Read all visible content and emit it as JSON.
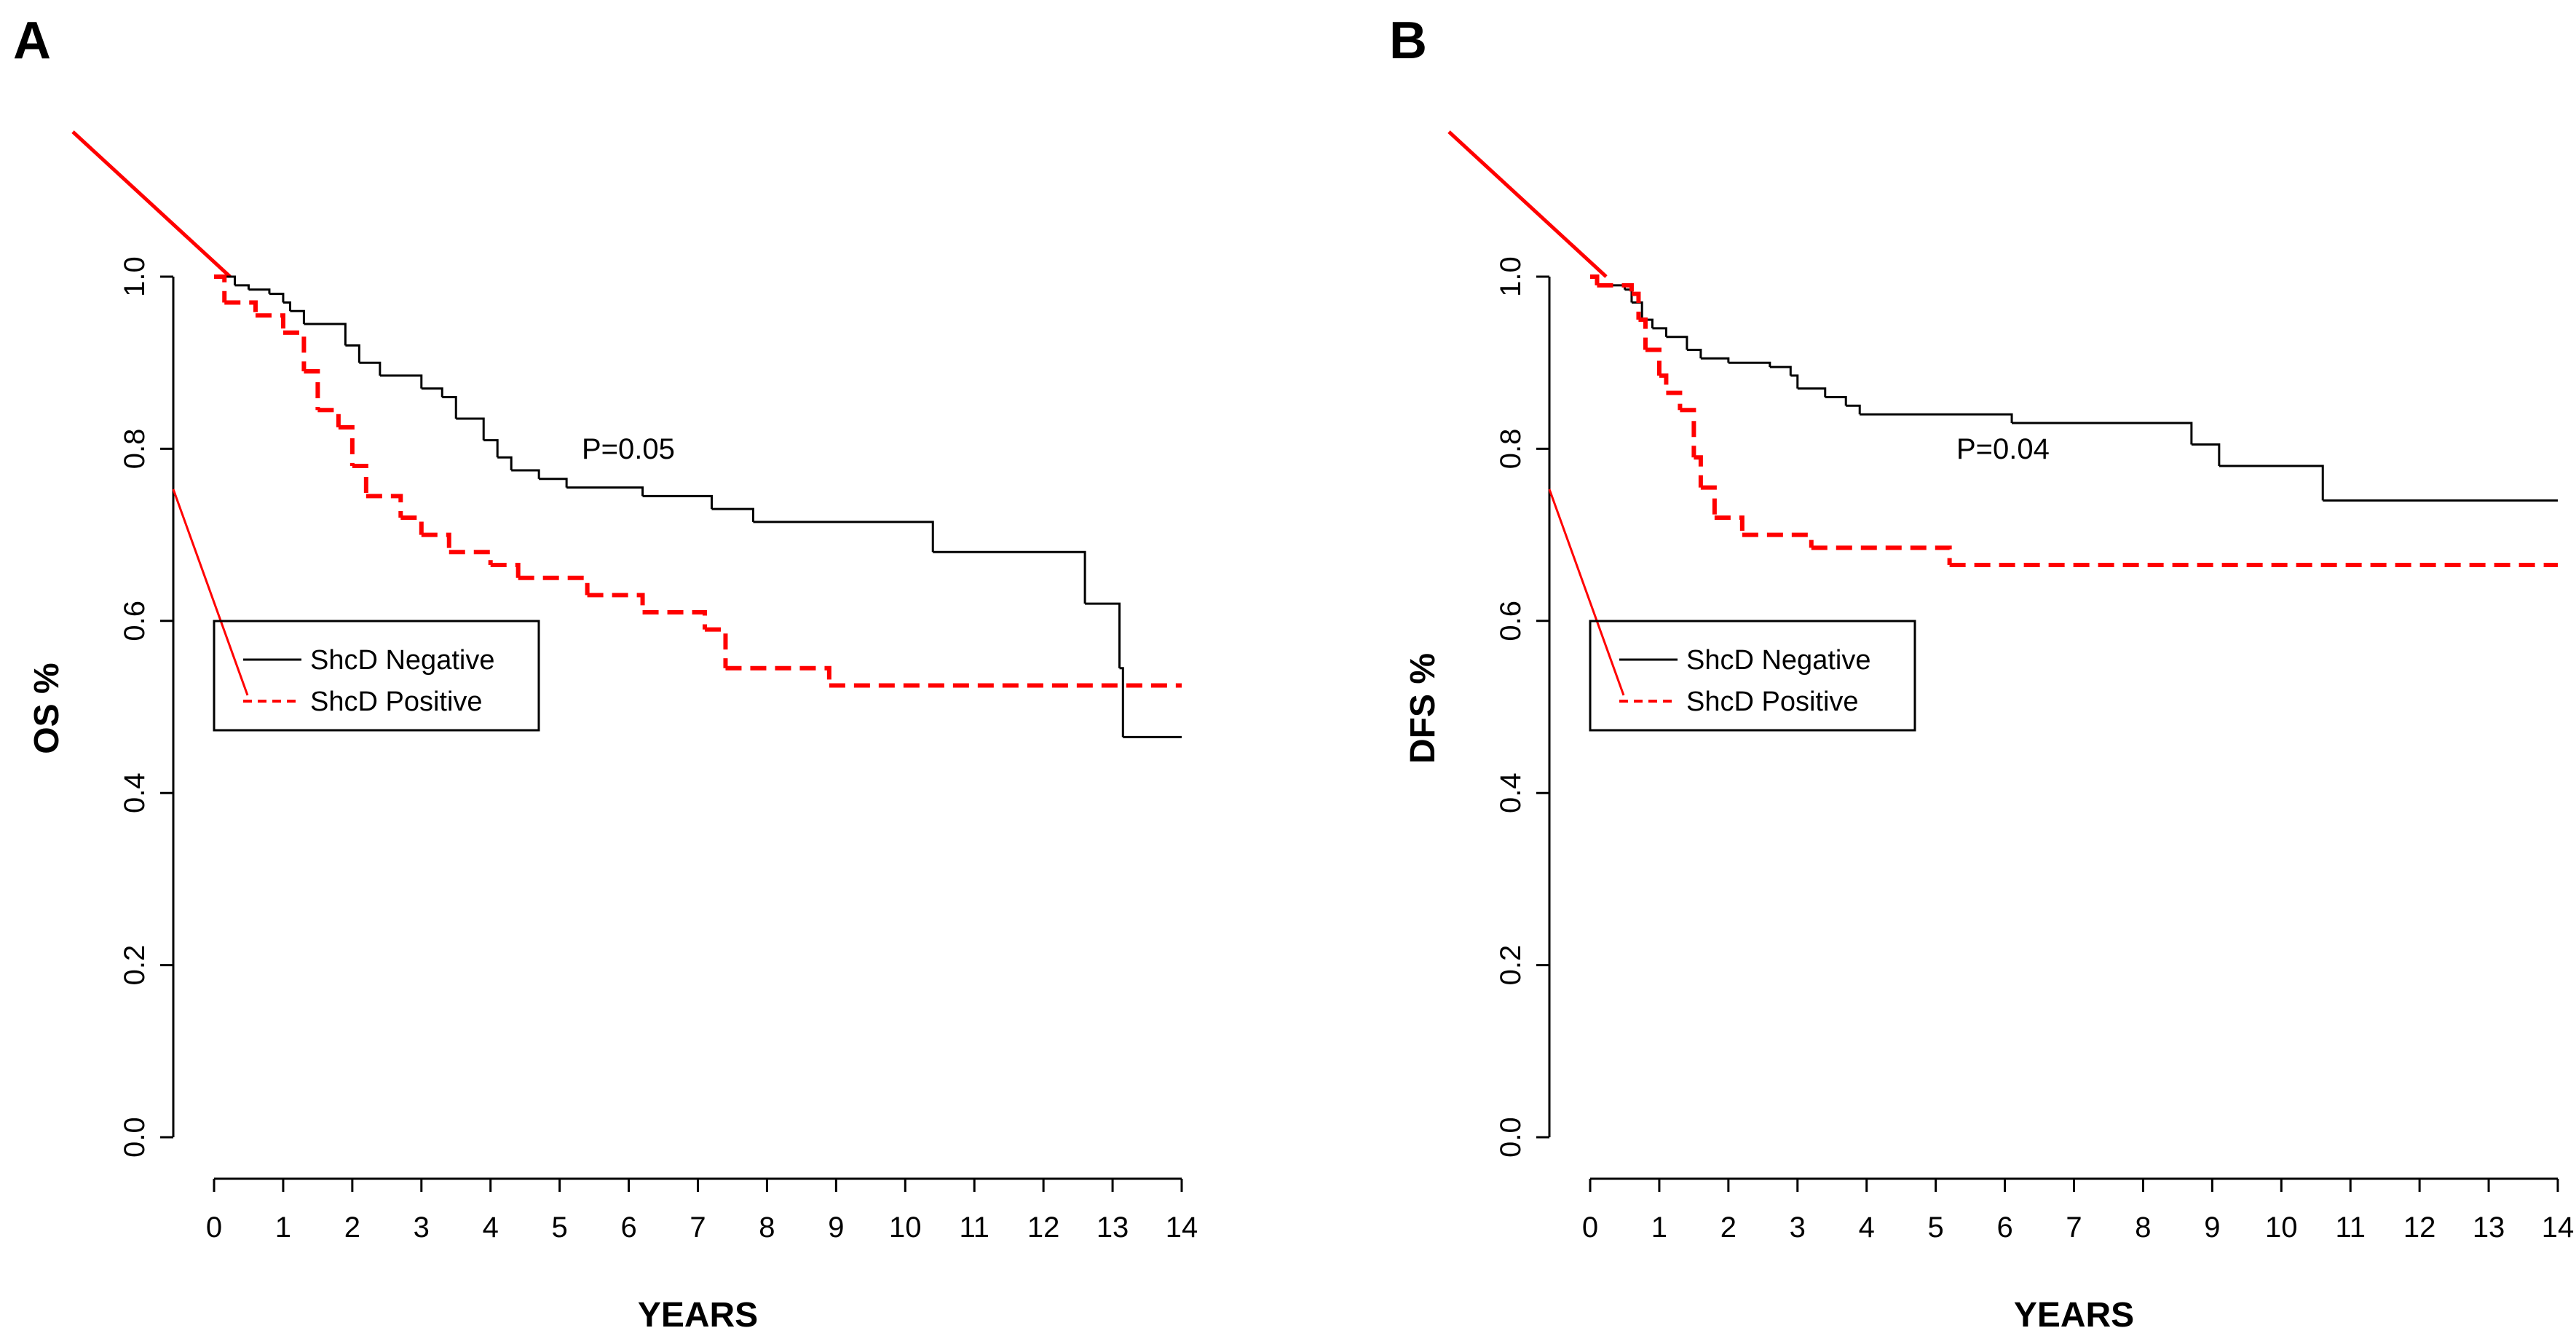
{
  "chart_data": [
    {
      "type": "step",
      "panel": "A",
      "ylabel": "OS %",
      "xlabel": "YEARS",
      "annotation": "P=0.05",
      "xlim": [
        0,
        14
      ],
      "xticks": [
        0,
        1,
        2,
        3,
        4,
        5,
        6,
        7,
        8,
        9,
        10,
        11,
        12,
        13,
        14
      ],
      "ylim": [
        0,
        1
      ],
      "yticks": [
        {
          "value": 0,
          "label": "0.0"
        },
        0.2,
        0.4,
        0.6,
        0.8,
        {
          "value": 1,
          "label": "1.0"
        }
      ],
      "series": [
        {
          "name": "ShcD Negative",
          "color": "#000000",
          "dashed": false,
          "x": [
            0,
            0.3,
            0.5,
            0.8,
            1.0,
            1.1,
            1.3,
            1.9,
            2.1,
            2.4,
            3.0,
            3.3,
            3.5,
            3.9,
            4.1,
            4.3,
            4.7,
            5.1,
            6.2,
            7.2,
            7.8,
            10.4,
            12.6,
            13.1,
            13.15,
            14
          ],
          "values": [
            1.0,
            0.99,
            0.985,
            0.98,
            0.97,
            0.96,
            0.945,
            0.92,
            0.9,
            0.885,
            0.87,
            0.86,
            0.835,
            0.81,
            0.79,
            0.775,
            0.765,
            0.755,
            0.745,
            0.73,
            0.715,
            0.68,
            0.62,
            0.545,
            0.465,
            0.465
          ]
        },
        {
          "name": "ShcD Positive",
          "color": "#ff0000",
          "dashed": true,
          "x": [
            0,
            0.15,
            0.6,
            1.0,
            1.3,
            1.5,
            1.8,
            2.0,
            2.2,
            2.7,
            3.0,
            3.4,
            4.0,
            4.4,
            5.4,
            6.2,
            7.1,
            7.4,
            8.9,
            14
          ],
          "values": [
            1.0,
            0.97,
            0.955,
            0.935,
            0.89,
            0.845,
            0.825,
            0.78,
            0.745,
            0.72,
            0.7,
            0.68,
            0.665,
            0.65,
            0.63,
            0.61,
            0.59,
            0.545,
            0.525,
            0.525
          ]
        }
      ]
    },
    {
      "type": "step",
      "panel": "B",
      "ylabel": "DFS %",
      "xlabel": "YEARS",
      "annotation": "P=0.04",
      "xlim": [
        0,
        14
      ],
      "xticks": [
        0,
        1,
        2,
        3,
        4,
        5,
        6,
        7,
        8,
        9,
        10,
        11,
        12,
        13,
        14
      ],
      "ylim": [
        0,
        1
      ],
      "yticks": [
        {
          "value": 0,
          "label": "0.0"
        },
        0.2,
        0.4,
        0.6,
        0.8,
        {
          "value": 1,
          "label": "1.0"
        }
      ],
      "series": [
        {
          "name": "ShcD Negative",
          "color": "#000000",
          "dashed": false,
          "x": [
            0,
            0.1,
            0.5,
            0.6,
            0.75,
            0.9,
            1.1,
            1.4,
            1.6,
            2.0,
            2.6,
            2.9,
            3.0,
            3.4,
            3.7,
            3.9,
            6.1,
            8.7,
            9.1,
            10.6,
            14
          ],
          "values": [
            1.0,
            0.99,
            0.985,
            0.97,
            0.95,
            0.94,
            0.93,
            0.915,
            0.905,
            0.9,
            0.895,
            0.885,
            0.87,
            0.86,
            0.85,
            0.84,
            0.83,
            0.805,
            0.78,
            0.74,
            0.74
          ]
        },
        {
          "name": "ShcD Positive",
          "color": "#ff0000",
          "dashed": true,
          "x": [
            0,
            0.1,
            0.6,
            0.7,
            0.8,
            1.0,
            1.1,
            1.3,
            1.5,
            1.6,
            1.8,
            2.2,
            3.2,
            5.2,
            14
          ],
          "values": [
            1.0,
            0.99,
            0.98,
            0.95,
            0.915,
            0.885,
            0.865,
            0.845,
            0.79,
            0.755,
            0.72,
            0.7,
            0.685,
            0.665,
            0.665
          ]
        }
      ]
    }
  ]
}
